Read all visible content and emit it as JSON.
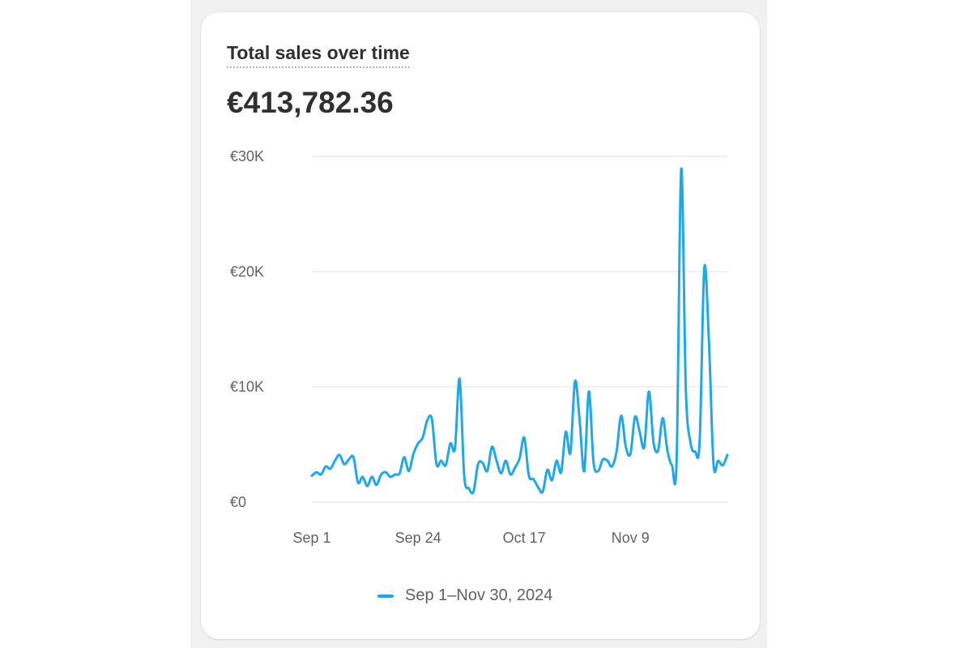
{
  "card": {
    "title": "Total sales over time",
    "total": "€413,782.36"
  },
  "colors": {
    "series": "#1fa8e8",
    "grid": "#ebebeb",
    "axis_text": "#616161"
  },
  "chart_data": {
    "type": "line",
    "title": "Total sales over time",
    "xlabel": "",
    "ylabel": "",
    "x_range": [
      "2024-09-01",
      "2024-11-30"
    ],
    "ylim": [
      0,
      30000
    ],
    "y_ticks": [
      {
        "value": 0,
        "label": "€0"
      },
      {
        "value": 10000,
        "label": "€10K"
      },
      {
        "value": 20000,
        "label": "€20K"
      },
      {
        "value": 30000,
        "label": "€30K"
      }
    ],
    "x_ticks": [
      {
        "value": "2024-09-01",
        "label": "Sep 1"
      },
      {
        "value": "2024-09-24",
        "label": "Sep 24"
      },
      {
        "value": "2024-10-17",
        "label": "Oct 17"
      },
      {
        "value": "2024-11-09",
        "label": "Nov 9"
      }
    ],
    "grid": true,
    "legend_position": "bottom",
    "series": [
      {
        "name": "Sep 1–Nov 30, 2024",
        "color": "#1fa8e8",
        "values": [
          2300,
          2600,
          2400,
          3100,
          2900,
          3600,
          4100,
          3300,
          3700,
          3900,
          1700,
          2200,
          1400,
          2200,
          1500,
          2400,
          2600,
          2200,
          2400,
          2500,
          3900,
          2700,
          4200,
          5100,
          5600,
          7100,
          7200,
          3300,
          3600,
          3200,
          5100,
          4700,
          10700,
          2300,
          1200,
          900,
          3300,
          3400,
          2700,
          4800,
          3600,
          2500,
          3600,
          2400,
          3000,
          3800,
          5600,
          2300,
          2000,
          1300,
          900,
          2800,
          1900,
          3600,
          2600,
          6100,
          4300,
          10500,
          7100,
          2700,
          9600,
          3500,
          2700,
          3700,
          3600,
          3100,
          4400,
          7500,
          4800,
          4200,
          7400,
          6100,
          4800,
          9600,
          5200,
          4500,
          7300,
          4500,
          3200,
          3600,
          28900,
          9800,
          5200,
          4400,
          5300,
          20300,
          14000,
          3300,
          3600,
          3200,
          4100
        ]
      }
    ]
  }
}
